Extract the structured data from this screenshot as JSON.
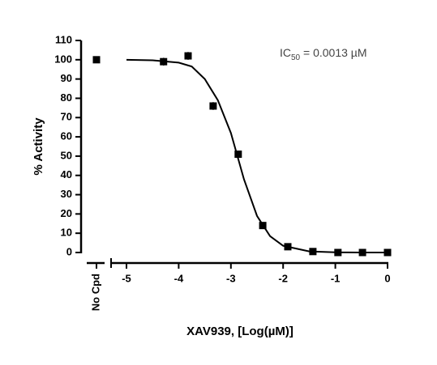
{
  "chart_data": {
    "type": "scatter",
    "x_label": "XAV939, [Log(µM)]",
    "y_label": "% Activity",
    "annotation": {
      "prefix": "IC",
      "subscript": "50",
      "suffix": " = 0.0013 µM"
    },
    "control": {
      "label": "No Cpd",
      "value": 100,
      "error": 1
    },
    "x": [
      -4.29,
      -3.82,
      -3.34,
      -2.86,
      -2.39,
      -1.91,
      -1.43,
      -0.95,
      -0.48,
      0
    ],
    "series": [
      {
        "name": "XAV939",
        "color": "#000000",
        "values": [
          99,
          102,
          76,
          51,
          14,
          3,
          0.5,
          0,
          0,
          0
        ],
        "errors": [
          2,
          2,
          2,
          1,
          1,
          1,
          0.5,
          0.5,
          0.5,
          0.5
        ]
      }
    ],
    "fit": {
      "x": [
        -5,
        -4.5,
        -4,
        -3.75,
        -3.5,
        -3.25,
        -3,
        -2.875,
        -2.75,
        -2.5,
        -2.25,
        -2,
        -1.5,
        -1,
        -0.5,
        0
      ],
      "values": [
        100,
        99.7,
        98.5,
        96.5,
        90,
        79,
        62,
        50,
        38,
        19,
        8.5,
        3.5,
        0.6,
        0.1,
        0,
        0
      ]
    },
    "xlim": [
      -5,
      0
    ],
    "xticks": [
      -5,
      -4,
      -3,
      -2,
      -1,
      0
    ],
    "ylim": [
      0,
      110
    ],
    "yticks": [
      0,
      10,
      20,
      30,
      40,
      50,
      60,
      70,
      80,
      90,
      100,
      110
    ]
  }
}
